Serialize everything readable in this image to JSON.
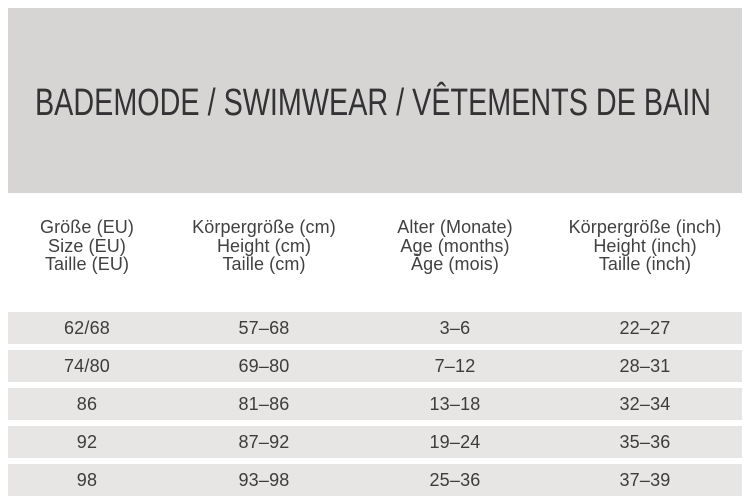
{
  "banner": {
    "title": "BADEMODE / SWIMWEAR / VÊTEMENTS DE BAIN"
  },
  "size_chart": {
    "headers": [
      [
        "Größe (EU)",
        "Size (EU)",
        "Taille (EU)"
      ],
      [
        "Körpergröße (cm)",
        "Height (cm)",
        "Taille (cm)"
      ],
      [
        "Alter (Monate)",
        "Age (months)",
        "Âge (mois)"
      ],
      [
        "Körpergröße (inch)",
        "Height (inch)",
        "Taille (inch)"
      ]
    ],
    "rows": [
      [
        "62/68",
        "57–68",
        "3–6",
        "22–27"
      ],
      [
        "74/80",
        "69–80",
        "7–12",
        "28–31"
      ],
      [
        "86",
        "81–86",
        "13–18",
        "32–34"
      ],
      [
        "92",
        "87–92",
        "19–24",
        "35–36"
      ],
      [
        "98",
        "93–98",
        "25–36",
        "37–39"
      ]
    ]
  },
  "colors": {
    "banner_background": "#d6d5d3",
    "row_background": "#e7e6e4",
    "title_text": "#333335",
    "header_text": "#414141",
    "cell_text": "#3c3c3c",
    "page_background": "#ffffff"
  }
}
